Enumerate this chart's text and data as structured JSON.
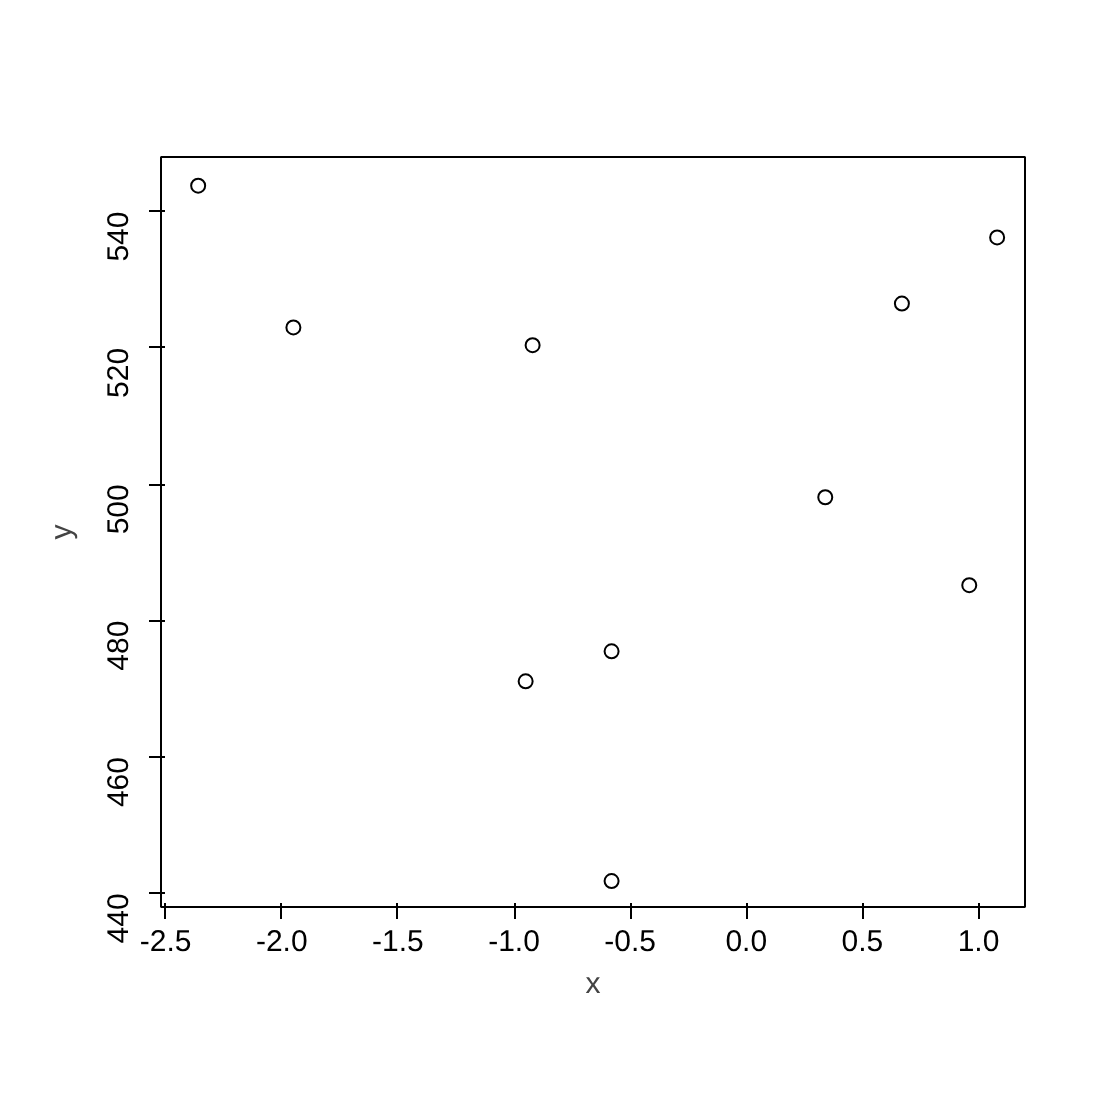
{
  "chart_data": {
    "type": "scatter",
    "xlabel": "x",
    "ylabel": "y",
    "x": [
      -2.36,
      -1.95,
      -0.92,
      0.34,
      0.67,
      1.08,
      0.96,
      -0.58,
      -0.95,
      -0.58
    ],
    "series": [
      {
        "color": "#000000",
        "values": [
          543.8,
          523.0,
          520.4,
          498.1,
          526.5,
          536.2,
          485.2,
          475.5,
          471.1,
          441.8
        ]
      }
    ],
    "xlim": [
      -2.52,
      1.2
    ],
    "ylim": [
      438,
      548
    ],
    "xticks": [
      -2.5,
      {
        "value": -2,
        "label": "-2.0"
      },
      -1.5,
      {
        "value": -1,
        "label": "-1.0"
      },
      -0.5,
      {
        "value": 0,
        "label": "0.0"
      },
      0.5,
      {
        "value": 1,
        "label": "1.0"
      }
    ],
    "yticks": [
      440,
      460,
      480,
      500,
      520,
      540
    ],
    "grid": false,
    "marker": "circle"
  }
}
